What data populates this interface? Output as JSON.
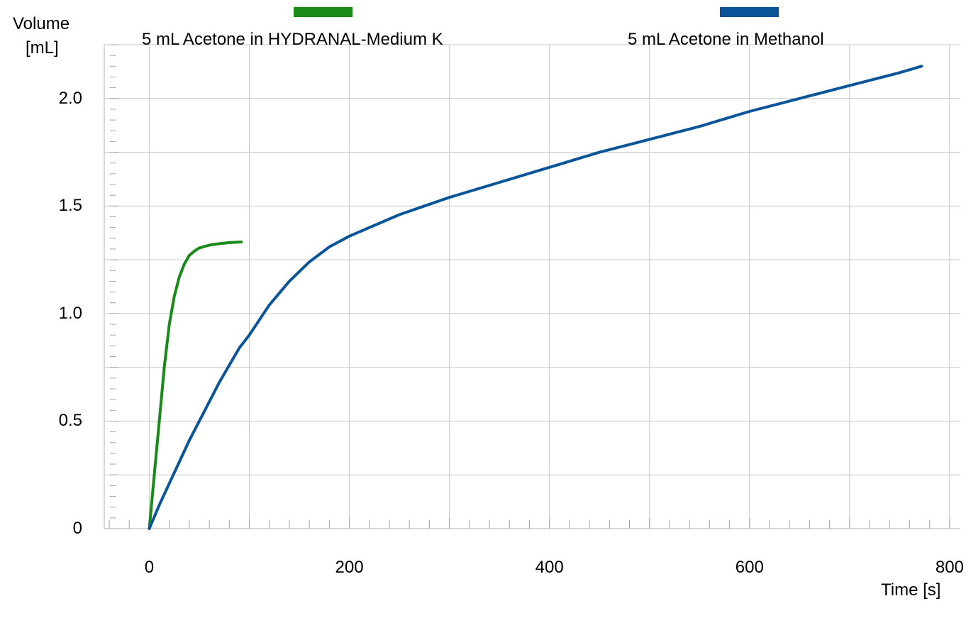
{
  "chart_data": {
    "type": "line",
    "ylabel": "Volume\n[mL]",
    "ylabel_line1": "Volume",
    "ylabel_line2": "[mL]",
    "xlabel": "Time [s]",
    "xlim": [
      -45,
      810
    ],
    "ylim": [
      0,
      2.25
    ],
    "x_ticks": [
      0,
      200,
      400,
      600,
      800
    ],
    "x_tick_labels": [
      "0",
      "200",
      "400",
      "600",
      "800"
    ],
    "y_ticks": [
      0,
      0.5,
      1.0,
      1.5,
      2.0
    ],
    "y_tick_labels": [
      "0",
      "0.5",
      "1.0",
      "1.5",
      "2.0"
    ],
    "grid": true,
    "legend_position": "top",
    "series": [
      {
        "name": "5 mL Acetone in HYDRANAL-Medium K",
        "color": "#178a17",
        "x": [
          0,
          5,
          10,
          15,
          20,
          25,
          30,
          35,
          40,
          45,
          50,
          60,
          70,
          80,
          92
        ],
        "y": [
          0,
          0.25,
          0.5,
          0.75,
          0.95,
          1.08,
          1.17,
          1.23,
          1.27,
          1.29,
          1.305,
          1.318,
          1.325,
          1.33,
          1.333
        ]
      },
      {
        "name": "5 mL Acetone in Methanol",
        "color": "#0a5599",
        "x": [
          0,
          10,
          20,
          30,
          40,
          50,
          60,
          70,
          80,
          90,
          100,
          120,
          140,
          160,
          180,
          200,
          250,
          300,
          350,
          400,
          450,
          500,
          550,
          600,
          650,
          700,
          750,
          772
        ],
        "y": [
          0,
          0.11,
          0.21,
          0.31,
          0.41,
          0.5,
          0.59,
          0.68,
          0.76,
          0.84,
          0.9,
          1.04,
          1.15,
          1.24,
          1.31,
          1.36,
          1.46,
          1.54,
          1.61,
          1.68,
          1.75,
          1.81,
          1.87,
          1.94,
          2.0,
          2.06,
          2.12,
          2.15
        ]
      }
    ]
  }
}
